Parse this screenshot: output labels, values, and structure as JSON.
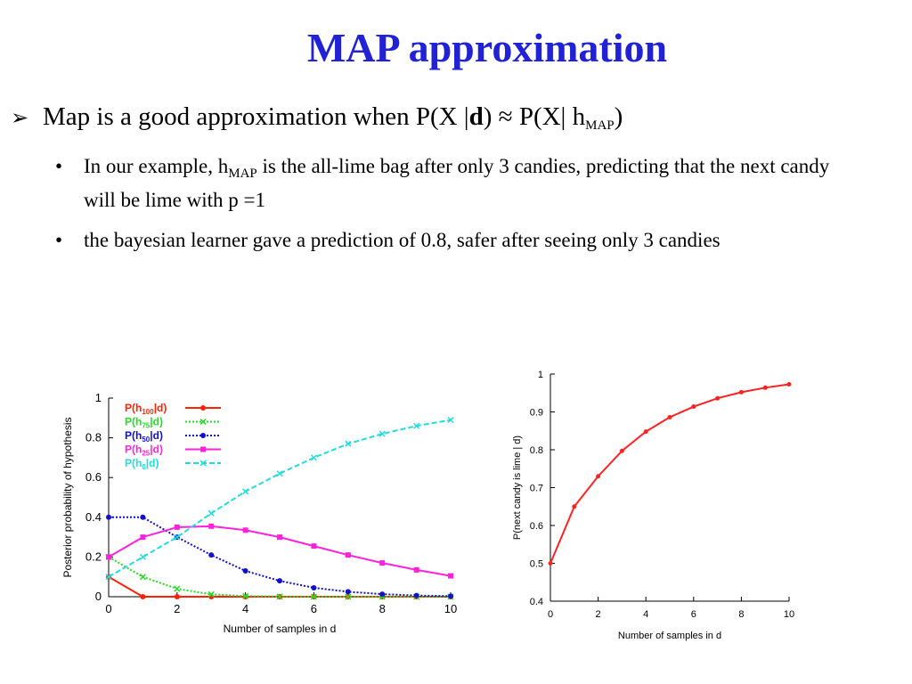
{
  "slide": {
    "title": "MAP approximation",
    "main_point": {
      "pre": "Map is a good approximation when P(X |",
      "bold": "d",
      "mid": ") ≈ P(X| h",
      "sub": "MAP",
      "post": ")"
    },
    "sub_points": [
      {
        "pre": "In our example, h",
        "sub": "MAP",
        "post": " is the all-lime bag after only 3 candies, predicting that the next candy will be lime with  p =1"
      },
      {
        "text": "the bayesian learner gave a prediction of 0.8, safer after seeing only 3 candies"
      }
    ],
    "bullet_char": "•",
    "arrow_char": "➢"
  },
  "chart_data": [
    {
      "type": "line",
      "title": "",
      "xlabel": "Number of samples in d",
      "ylabel": "Posterior probability of hypothesis",
      "x": [
        0,
        1,
        2,
        3,
        4,
        5,
        6,
        7,
        8,
        9,
        10
      ],
      "xlim": [
        0,
        10
      ],
      "ylim": [
        0,
        1
      ],
      "xticks": [
        0,
        2,
        4,
        6,
        8,
        10
      ],
      "yticks": [
        0,
        0.2,
        0.4,
        0.6,
        0.8,
        1
      ],
      "legend_position": "top-left",
      "series": [
        {
          "name": "P(h100|d)",
          "label_main": "P(h",
          "label_sub": "100",
          "label_post": "|d)",
          "color": "#ff2200",
          "dash": "solid",
          "marker": "circle",
          "values": [
            0.1,
            0.0,
            0.0,
            0.0,
            0.0,
            0.0,
            0.0,
            0.0,
            0.0,
            0.0,
            0.0
          ]
        },
        {
          "name": "P(h75|d)",
          "label_main": "P(h",
          "label_sub": "75",
          "label_post": "|d)",
          "color": "#22dd22",
          "dash": "dotted",
          "marker": "x",
          "values": [
            0.2,
            0.1,
            0.04,
            0.012,
            0.003,
            0.001,
            0.0,
            0.0,
            0.0,
            0.0,
            0.0
          ]
        },
        {
          "name": "P(h50|d)",
          "label_main": "P(h",
          "label_sub": "50",
          "label_post": "|d)",
          "color": "#1111cc",
          "dash": "dotted",
          "marker": "circle",
          "values": [
            0.4,
            0.4,
            0.3,
            0.21,
            0.13,
            0.08,
            0.045,
            0.025,
            0.013,
            0.006,
            0.003
          ]
        },
        {
          "name": "P(h25|d)",
          "label_main": "P(h",
          "label_sub": "25",
          "label_post": "|d)",
          "color": "#ff22dd",
          "dash": "solid",
          "marker": "square",
          "values": [
            0.2,
            0.3,
            0.35,
            0.355,
            0.335,
            0.3,
            0.255,
            0.21,
            0.17,
            0.135,
            0.105
          ]
        },
        {
          "name": "P(h0|d)",
          "label_main": "P(h",
          "label_sub": "0",
          "label_post": "|d)",
          "color": "#22dddd",
          "dash": "dashed",
          "marker": "x",
          "values": [
            0.1,
            0.2,
            0.3,
            0.42,
            0.53,
            0.62,
            0.7,
            0.77,
            0.82,
            0.86,
            0.89
          ]
        }
      ]
    },
    {
      "type": "line",
      "title": "",
      "xlabel": "Number of samples in d",
      "ylabel": "P(next candy is lime | d)",
      "x": [
        0,
        1,
        2,
        3,
        4,
        5,
        6,
        7,
        8,
        9,
        10
      ],
      "xlim": [
        0,
        10
      ],
      "ylim": [
        0.4,
        1
      ],
      "xticks": [
        0,
        2,
        4,
        6,
        8,
        10
      ],
      "yticks": [
        0.4,
        0.5,
        0.6,
        0.7,
        0.8,
        0.9,
        1
      ],
      "series": [
        {
          "name": "",
          "color": "#ff2222",
          "dash": "solid",
          "marker": "circle",
          "values": [
            0.5,
            0.65,
            0.73,
            0.797,
            0.848,
            0.886,
            0.914,
            0.936,
            0.952,
            0.964,
            0.973
          ]
        }
      ]
    }
  ]
}
